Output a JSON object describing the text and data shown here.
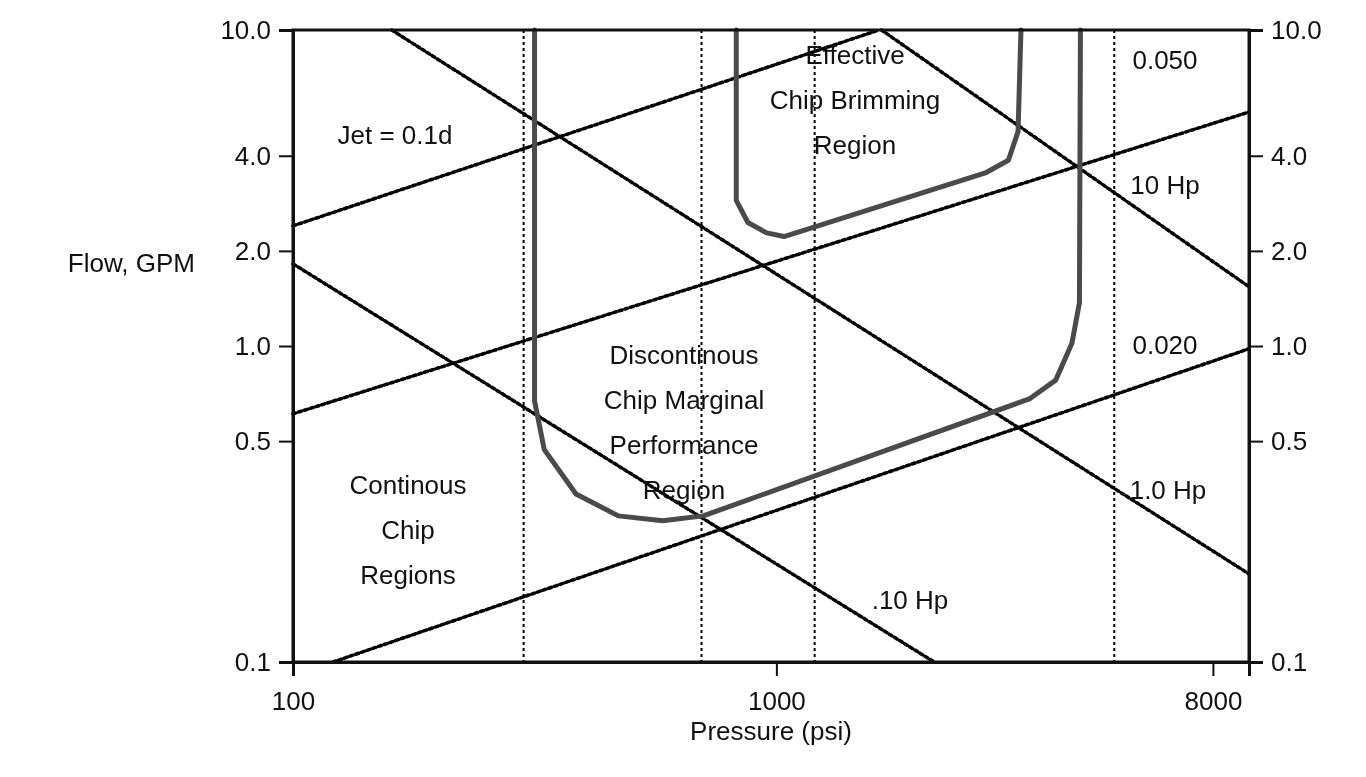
{
  "chart_data": {
    "type": "line",
    "xlabel": "Pressure (psi)",
    "ylabel": "Flow, GPM",
    "log": "xy",
    "grid": false,
    "legend": false,
    "xlim": [
      100,
      9500
    ],
    "ylim": [
      0.1,
      10
    ],
    "xticks": [
      100,
      1000,
      8000
    ],
    "yticks": [
      {
        "value": 10,
        "label": "10.0"
      },
      {
        "value": 4,
        "label": "4.0"
      },
      {
        "value": 2,
        "label": "2.0"
      },
      {
        "value": 1,
        "label": "1.0"
      },
      {
        "value": 0.5,
        "label": "0.5"
      },
      {
        "value": 0.1,
        "label": "0.1"
      }
    ],
    "series": [
      {
        "name": "Jet = 0.1d",
        "line_style": "dotted",
        "color": "#000000",
        "x": [
          100,
          1630
        ],
        "values": [
          2.4,
          10
        ]
      },
      {
        "name": "0.050",
        "line_style": "dotted",
        "color": "#000000",
        "x": [
          100,
          9500
        ],
        "values": [
          0.61,
          5.5
        ]
      },
      {
        "name": "0.020",
        "line_style": "dotted",
        "color": "#000000",
        "x": [
          121,
          9500
        ],
        "values": [
          0.1,
          0.98
        ]
      },
      {
        "name": "10 Hp",
        "line_style": "dotted",
        "color": "#000000",
        "x": [
          1650,
          9500
        ],
        "values": [
          10,
          1.54
        ]
      },
      {
        "name": "1.0 Hp",
        "line_style": "dotted",
        "color": "#000000",
        "x": [
          160,
          9500
        ],
        "values": [
          10,
          0.19
        ]
      },
      {
        "name": ".10 Hp",
        "line_style": "dotted",
        "color": "#000000",
        "x": [
          100,
          2120
        ],
        "values": [
          1.82,
          0.1
        ]
      },
      {
        "line_style": "solid",
        "color": "#4a4a4a",
        "x": [
          316,
          316,
          331,
          385,
          471,
          582,
          706,
          3336,
          3784,
          4087,
          4236,
          4256
        ],
        "values": [
          10,
          0.67,
          0.47,
          0.34,
          0.29,
          0.28,
          0.29,
          0.68,
          0.78,
          1.02,
          1.37,
          10
        ]
      },
      {
        "line_style": "solid",
        "color": "#4a4a4a",
        "x": [
          826,
          826,
          873,
          955,
          1037,
          2716,
          3020,
          3162,
          3206
        ],
        "values": [
          10,
          2.89,
          2.46,
          2.28,
          2.22,
          3.54,
          3.87,
          4.77,
          10
        ]
      }
    ],
    "ref_lines": [
      {
        "axis": "x",
        "value": 300,
        "line_style": "dotted",
        "color": "#000000"
      },
      {
        "axis": "x",
        "value": 700,
        "line_style": "dotted",
        "color": "#000000"
      },
      {
        "axis": "x",
        "value": 1200,
        "line_style": "dotted",
        "color": "#000000"
      },
      {
        "axis": "x",
        "value": 5000,
        "line_style": "dotted",
        "color": "#000000"
      }
    ],
    "annotations": [
      "Effective\nChip Brimming\nRegion",
      "Discontinous\nChip Marginal\nPerformance\nRegion",
      "Continous\nChip\nRegions"
    ]
  }
}
